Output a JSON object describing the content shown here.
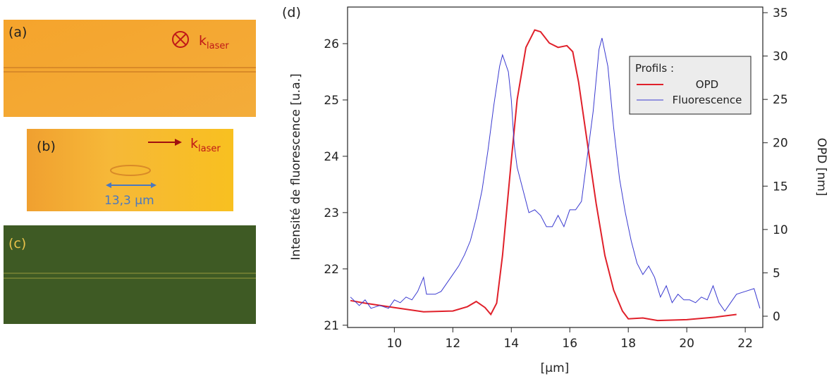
{
  "panels": [
    {
      "label": "(a)",
      "k_label": "k",
      "k_subscript": "laser"
    },
    {
      "label": "(b)",
      "k_label": "k",
      "k_subscript": "laser",
      "scale_label": "13,3 µm"
    },
    {
      "label": "(c)"
    }
  ],
  "chart_data": {
    "type": "line",
    "panel_label": "(d)",
    "x_label": "[µm]",
    "y_label": "Intensité de fluorescence [u.a.]",
    "y2_label": "OPD [nm]",
    "xlim": [
      8.4,
      22.6
    ],
    "xticks": [
      10,
      12,
      14,
      16,
      18,
      20,
      22
    ],
    "ylim": [
      20.96,
      26.65
    ],
    "yticks": [
      21,
      22,
      23,
      24,
      25,
      26
    ],
    "y2lim": [
      -1.3,
      35.65
    ],
    "y2ticks": [
      0,
      5,
      10,
      15,
      20,
      25,
      30,
      35
    ],
    "legend_title": "Profils :",
    "legend_position": "upper right",
    "series": [
      {
        "name": "OPD",
        "color": "#e0202a",
        "axis": "y2",
        "x": [
          8.5,
          9,
          10,
          11,
          12,
          12.5,
          12.8,
          13.1,
          13.3,
          13.5,
          13.7,
          14,
          14.2,
          14.5,
          14.8,
          15,
          15.3,
          15.6,
          15.9,
          16.1,
          16.3,
          16.6,
          16.9,
          17.2,
          17.5,
          17.8,
          18,
          18.5,
          19,
          20,
          21,
          21.7
        ],
        "values": [
          1.8,
          1.5,
          1.0,
          0.5,
          0.6,
          1.1,
          1.7,
          1.0,
          0.2,
          1.5,
          7,
          18,
          25,
          31,
          33,
          32.8,
          31.5,
          31,
          31.2,
          30.5,
          27,
          20,
          13,
          7,
          3,
          0.6,
          -0.3,
          -0.2,
          -0.5,
          -0.4,
          -0.1,
          0.2
        ]
      },
      {
        "name": "Fluorescence",
        "color": "#3a3ad0",
        "x": [
          8.5,
          8.8,
          9,
          9.2,
          9.5,
          9.8,
          10,
          10.2,
          10.4,
          10.6,
          10.8,
          11,
          11.1,
          11.4,
          11.6,
          11.8,
          12,
          12.2,
          12.4,
          12.6,
          12.8,
          13,
          13.2,
          13.4,
          13.6,
          13.7,
          13.9,
          14,
          14.1,
          14.2,
          14.4,
          14.6,
          14.8,
          15,
          15.2,
          15.4,
          15.6,
          15.8,
          16,
          16.2,
          16.4,
          16.6,
          16.8,
          17,
          17.1,
          17.3,
          17.5,
          17.7,
          17.9,
          18.1,
          18.3,
          18.5,
          18.7,
          18.9,
          19.1,
          19.3,
          19.5,
          19.7,
          19.9,
          20.1,
          20.3,
          20.5,
          20.7,
          20.9,
          21.1,
          21.3,
          21.5,
          21.7,
          22,
          22.3,
          22.5
        ],
        "values": [
          21.5,
          21.35,
          21.45,
          21.3,
          21.35,
          21.3,
          21.45,
          21.4,
          21.5,
          21.45,
          21.6,
          21.85,
          21.55,
          21.55,
          21.6,
          21.75,
          21.9,
          22.05,
          22.25,
          22.5,
          22.9,
          23.4,
          24.1,
          24.9,
          25.6,
          25.8,
          25.5,
          25.0,
          24.2,
          23.8,
          23.4,
          23.0,
          23.05,
          22.95,
          22.75,
          22.75,
          22.95,
          22.75,
          23.05,
          23.05,
          23.2,
          24.0,
          24.8,
          25.9,
          26.1,
          25.6,
          24.5,
          23.6,
          23.0,
          22.5,
          22.1,
          21.9,
          22.05,
          21.85,
          21.5,
          21.7,
          21.4,
          21.55,
          21.45,
          21.45,
          21.4,
          21.5,
          21.45,
          21.7,
          21.4,
          21.25,
          21.4,
          21.55,
          21.6,
          21.65,
          21.3
        ]
      }
    ]
  }
}
